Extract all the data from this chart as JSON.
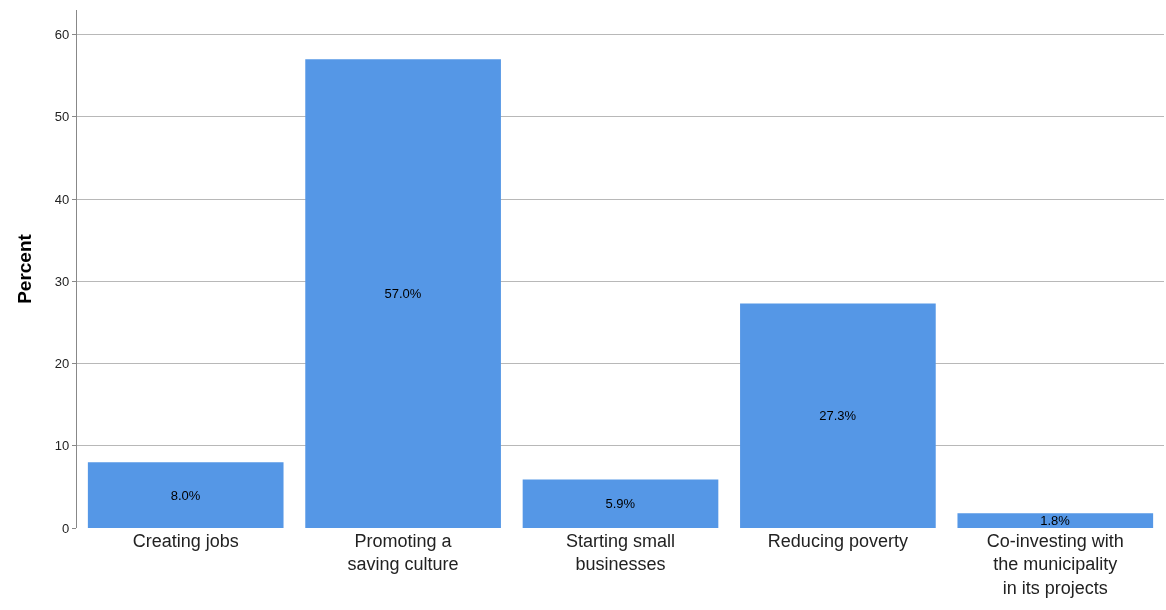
{
  "chart_data": {
    "type": "bar",
    "ylabel": "Percent",
    "categories": [
      "Creating jobs",
      "Promoting a saving culture",
      "Starting small businesses",
      "Reducing poverty",
      "Co-investing with the municipality in its projects"
    ],
    "values": [
      8.0,
      57.0,
      5.9,
      27.3,
      1.8
    ],
    "value_labels": [
      "8.0%",
      "57.0%",
      "5.9%",
      "27.3%",
      "1.8%"
    ],
    "color": "#5597e6",
    "ylim": [
      0,
      63
    ],
    "yticks": [
      0,
      10,
      20,
      30,
      40,
      50,
      60
    ],
    "grid": "y"
  }
}
